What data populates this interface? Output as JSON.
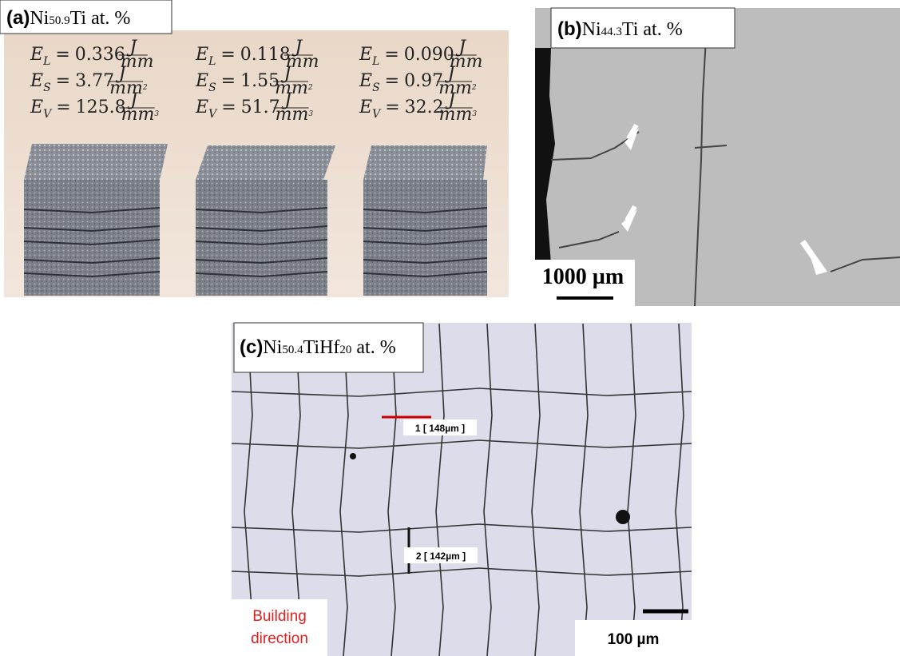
{
  "panels": [
    {
      "label": "(a)",
      "composition": [
        {
          "text": "Ni"
        },
        {
          "text": "50.9",
          "sub": true
        },
        {
          "text": "Ti at. %"
        }
      ],
      "energy": {
        "rows": [
          {
            "symbol": "E",
            "subscript": "L",
            "relation": "=",
            "values": [
              "0.336",
              "0.118",
              "0.090"
            ],
            "unit_num": "J",
            "unit_den": "mm"
          },
          {
            "symbol": "E",
            "subscript": "S",
            "relation": "=",
            "values": [
              "3.77",
              "1.55",
              "0.97"
            ],
            "unit_num": "J",
            "unit_den": "mm",
            "unit_exp": "2"
          },
          {
            "symbol": "E",
            "subscript": "V",
            "relation": "=",
            "values": [
              "125.8",
              "51.7",
              "32.2"
            ],
            "unit_num": "J",
            "unit_den": "mm",
            "unit_exp": "3"
          }
        ]
      }
    },
    {
      "label": "(b)",
      "composition": [
        {
          "text": "Ni"
        },
        {
          "text": "44.3",
          "sub": true
        },
        {
          "text": "Ti at. %"
        }
      ],
      "scale_bar": "1000 µm"
    },
    {
      "label": "(c)",
      "composition": [
        {
          "text": "Ni"
        },
        {
          "text": "50.4",
          "sub": true
        },
        {
          "text": "TiHf"
        },
        {
          "text": "20",
          "sub": true
        },
        {
          "text": " at. %"
        }
      ],
      "measurements": [
        "1 [ 148µm ]",
        "2 [ 142µm ]"
      ],
      "direction": [
        "Building",
        "direction"
      ],
      "scale_bar": "100 µm"
    }
  ]
}
